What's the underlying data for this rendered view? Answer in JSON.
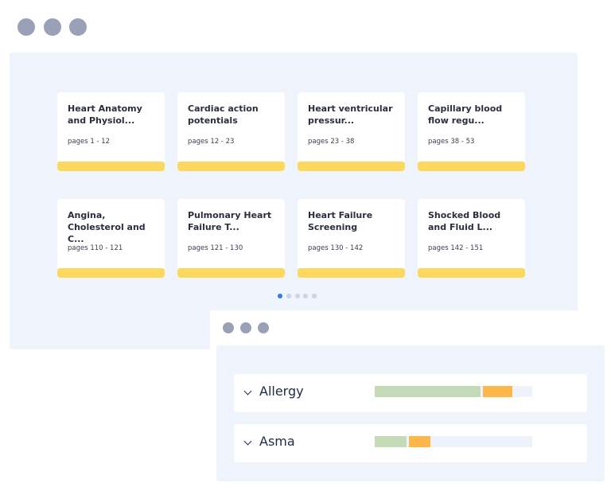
{
  "cards": [
    {
      "title": "Heart Anatomy and Physiol...",
      "pages": "pages 1 - 12"
    },
    {
      "title": "Cardiac action potentials",
      "pages": "pages 12 - 23"
    },
    {
      "title": "Heart ventricular pressur...",
      "pages": "pages 23 - 38"
    },
    {
      "title": "Capillary blood flow regu...",
      "pages": "pages 38 - 53"
    },
    {
      "title": "Angina, Cholesterol and C...",
      "pages": "pages 110 - 121"
    },
    {
      "title": "Pulmonary Heart Failure T...",
      "pages": "pages 121 - 130"
    },
    {
      "title": "Heart Failure Screening",
      "pages": "pages 130 - 142"
    },
    {
      "title": "Shocked Blood and Fluid L...",
      "pages": "pages 142 - 151"
    }
  ],
  "topics": [
    {
      "label": "Allergy",
      "values": [
        67,
        19
      ]
    },
    {
      "label": "Asma",
      "values": [
        20,
        14
      ]
    }
  ]
}
